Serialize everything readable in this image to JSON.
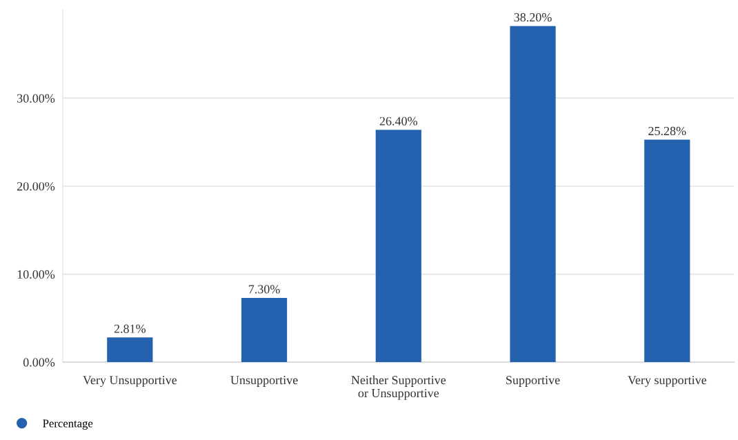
{
  "chart_data": {
    "type": "bar",
    "categories": [
      "Very Unsupportive",
      "Unsupportive",
      "Neither Supportive\nor Unsupportive",
      "Supportive",
      "Very supportive"
    ],
    "series": [
      {
        "name": "Percentage",
        "color": "#2461ae",
        "values": [
          2.81,
          7.3,
          26.4,
          38.2,
          25.28
        ],
        "value_labels": [
          "2.81%",
          "7.30%",
          "26.40%",
          "38.20%",
          "25.28%"
        ]
      }
    ],
    "ylim": [
      0,
      40
    ],
    "yticks": [
      {
        "value": 0,
        "label": "0.00%"
      },
      {
        "value": 10,
        "label": "10.00%"
      },
      {
        "value": 20,
        "label": "20.00%"
      },
      {
        "value": 30,
        "label": "30.00%"
      }
    ],
    "grid": "y",
    "legend": "bottom left",
    "marker": "circle"
  }
}
